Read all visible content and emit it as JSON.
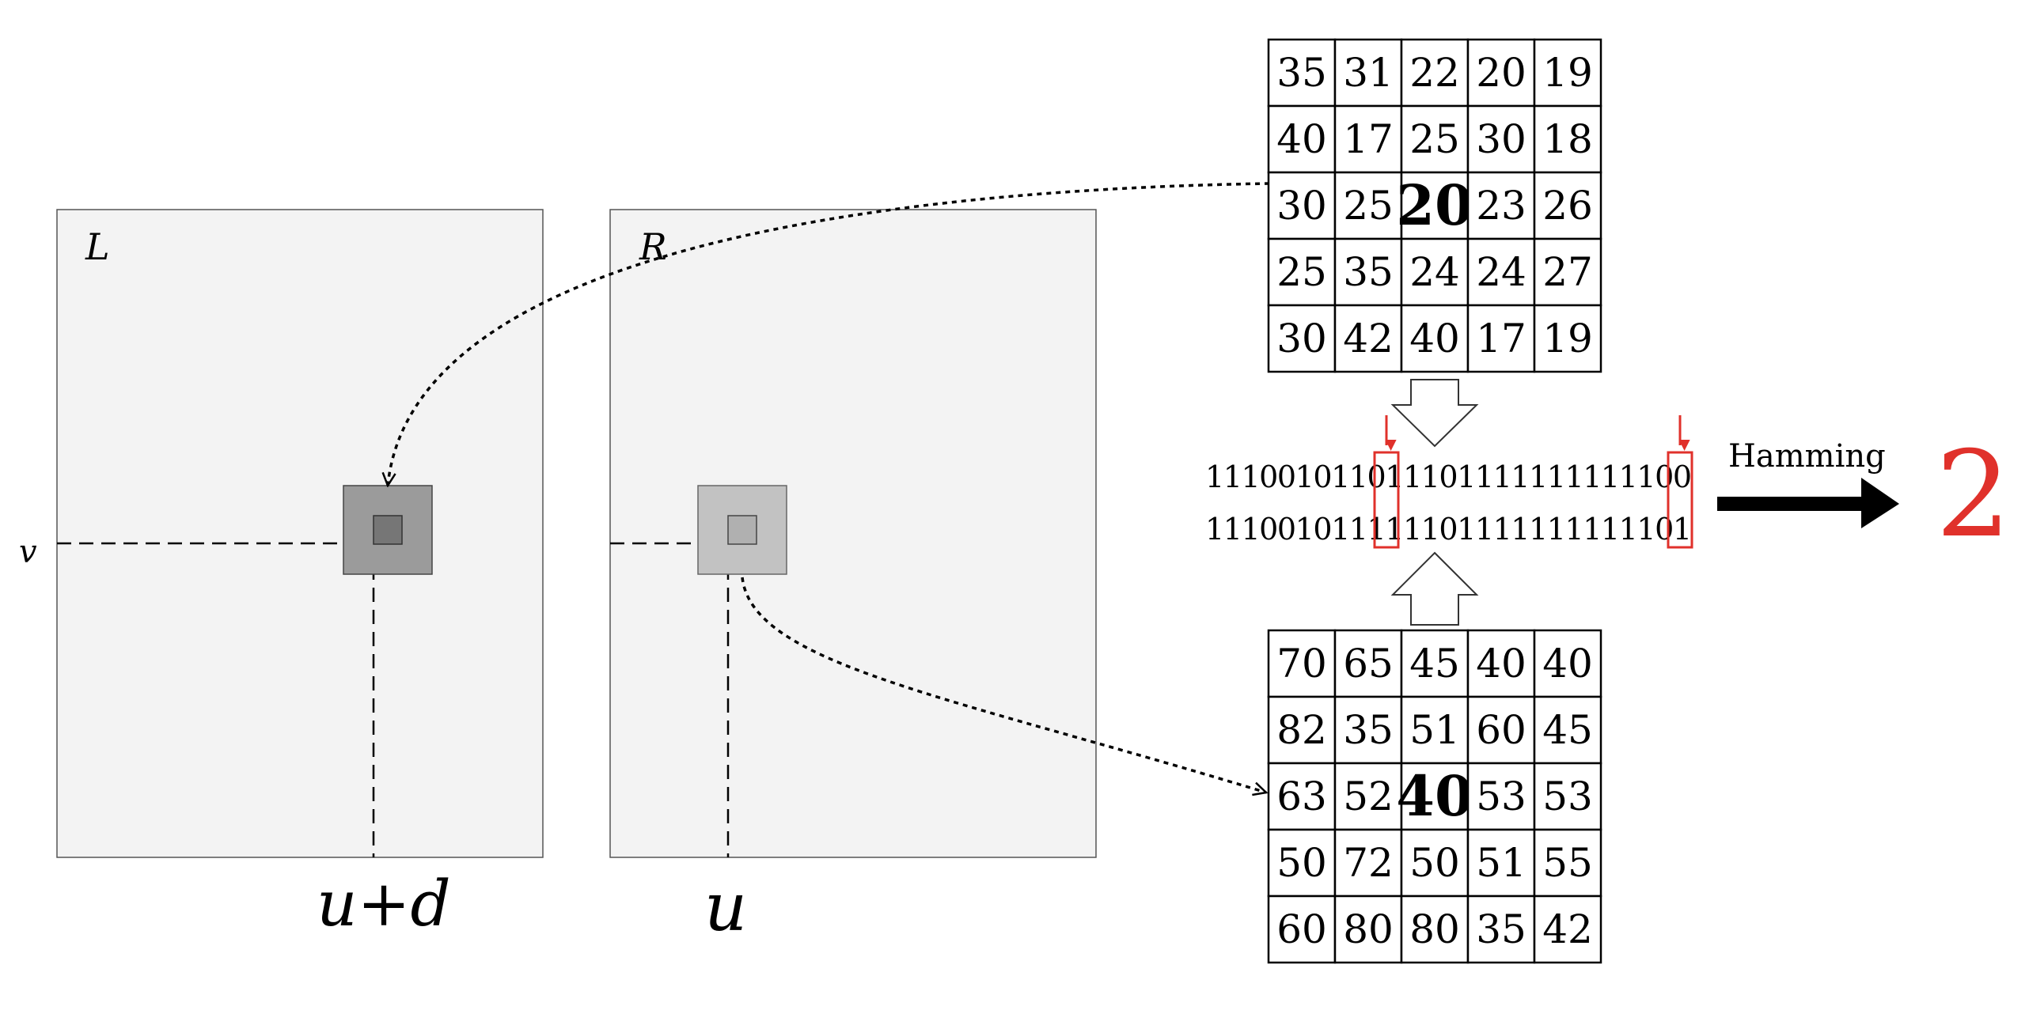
{
  "colors": {
    "panel_fill": "#f3f3f3",
    "panel_stroke": "#555555",
    "window_left_outer": "#9b9b9b",
    "window_left_inner": "#767676",
    "window_right_outer": "#c2c2c2",
    "window_right_inner": "#b0b0b0",
    "highlight_red": "#e0312b",
    "ink": "#000000"
  },
  "left_image": {
    "label": "L",
    "v_label": "v",
    "u_label": "u+d"
  },
  "right_image": {
    "label": "R",
    "u_label": "u"
  },
  "top_matrix": {
    "rows": [
      [
        "35",
        "31",
        "22",
        "20",
        "19"
      ],
      [
        "40",
        "17",
        "25",
        "30",
        "18"
      ],
      [
        "30",
        "25",
        "20",
        "23",
        "26"
      ],
      [
        "25",
        "35",
        "24",
        "24",
        "27"
      ],
      [
        "30",
        "42",
        "40",
        "17",
        "19"
      ]
    ],
    "center_value": "20"
  },
  "bottom_matrix": {
    "rows": [
      [
        "70",
        "65",
        "45",
        "40",
        "40"
      ],
      [
        "82",
        "35",
        "51",
        "60",
        "45"
      ],
      [
        "63",
        "52",
        "40",
        "53",
        "53"
      ],
      [
        "50",
        "72",
        "50",
        "51",
        "55"
      ],
      [
        "60",
        "80",
        "80",
        "35",
        "42"
      ]
    ],
    "center_value": "40"
  },
  "bit_strings": {
    "top": "111001011011101111111111100",
    "bottom": "111001011111101111111111101"
  },
  "hamming": {
    "label": "Hamming",
    "distance": "2"
  }
}
